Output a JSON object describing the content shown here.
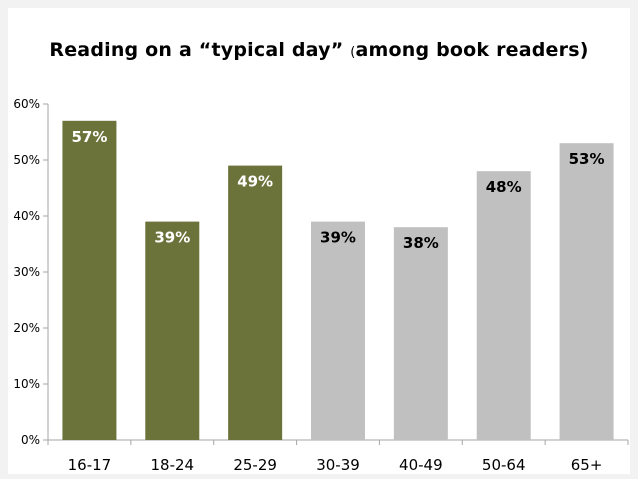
{
  "chart_data": {
    "type": "bar",
    "title": "Reading on a “typical day”",
    "title_paren": "(",
    "title_rest": "among book readers)",
    "categories": [
      "16-17",
      "18-24",
      "25-29",
      "30-39",
      "40-49",
      "50-64",
      "65+"
    ],
    "values": [
      57,
      39,
      49,
      39,
      38,
      48,
      53
    ],
    "data_labels": [
      "57%",
      "39%",
      "49%",
      "39%",
      "38%",
      "48%",
      "53%"
    ],
    "ylim": [
      0,
      60
    ],
    "y_ticks": [
      0,
      10,
      20,
      30,
      40,
      50,
      60
    ],
    "y_tick_labels": [
      "0%",
      "10%",
      "20%",
      "30%",
      "40%",
      "50%",
      "60%"
    ],
    "grid": false,
    "bar_colors": [
      "#6b733a",
      "#6b733a",
      "#6b733a",
      "#c0c0c0",
      "#c0c0c0",
      "#c0c0c0",
      "#c0c0c0"
    ],
    "label_colors": [
      "#ffffff",
      "#ffffff",
      "#ffffff",
      "#000000",
      "#000000",
      "#000000",
      "#000000"
    ],
    "axis_color": "#a6a6a6"
  }
}
